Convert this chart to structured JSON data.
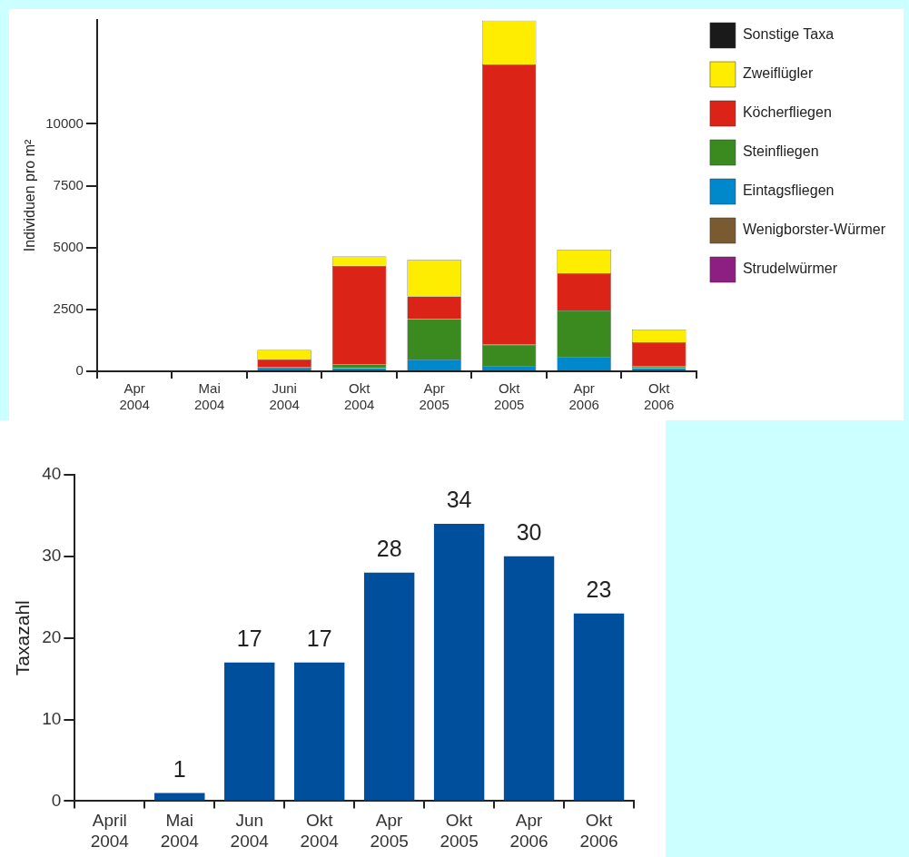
{
  "chart_data": [
    {
      "type": "bar",
      "ylabel": "Individuen pro m²",
      "categories": [
        "Apr 2004",
        "Mai 2004",
        "Juni 2004",
        "Okt 2004",
        "Apr 2005",
        "Okt 2005",
        "Apr 2006",
        "Okt 2006"
      ],
      "stacked": true,
      "legend": "right",
      "grid": false,
      "ylim": [
        0,
        14200
      ],
      "yticks": [
        0,
        2500,
        5000,
        7500,
        10000
      ],
      "series": [
        {
          "name": "Strudelwürmer",
          "color": "#8e1f82",
          "values": [
            0,
            0,
            0,
            0,
            0,
            0,
            0,
            0
          ]
        },
        {
          "name": "Wenigborster-Würmer",
          "color": "#7a5a30",
          "values": [
            0,
            0,
            0,
            0,
            0,
            0,
            0,
            0
          ]
        },
        {
          "name": "Eintagsfliegen",
          "color": "#0088cc",
          "values": [
            0,
            0,
            160,
            130,
            480,
            220,
            590,
            130
          ]
        },
        {
          "name": "Steinfliegen",
          "color": "#3a8a20",
          "values": [
            0,
            0,
            0,
            150,
            1630,
            850,
            1870,
            60
          ]
        },
        {
          "name": "Köcherfliegen",
          "color": "#dc2318",
          "values": [
            0,
            0,
            320,
            3990,
            920,
            11330,
            1500,
            980
          ]
        },
        {
          "name": "Zweiflügler",
          "color": "#ffed00",
          "values": [
            0,
            0,
            380,
            370,
            1470,
            1770,
            960,
            520
          ]
        },
        {
          "name": "Sonstige Taxa",
          "color": "#1a1a1a",
          "values": [
            0,
            0,
            0,
            0,
            0,
            0,
            0,
            0
          ]
        }
      ]
    },
    {
      "type": "bar",
      "ylabel": "Taxazahl",
      "categories": [
        "April 2004",
        "Mai 2004",
        "Jun 2004",
        "Okt 2004",
        "Apr 2005",
        "Okt 2005",
        "Apr 2006",
        "Okt 2006"
      ],
      "values": [
        0,
        1,
        17,
        17,
        28,
        34,
        30,
        23
      ],
      "value_labels": [
        null,
        "1",
        "17",
        "17",
        "28",
        "34",
        "30",
        "23"
      ],
      "color": "#004f9c",
      "grid": false,
      "ylim": [
        0,
        40
      ],
      "yticks": [
        0,
        10,
        20,
        30,
        40
      ]
    }
  ]
}
